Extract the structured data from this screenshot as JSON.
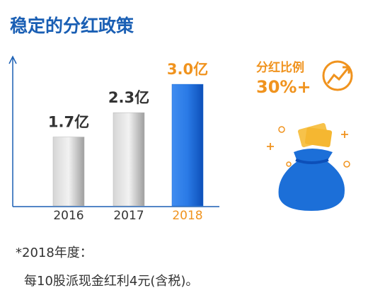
{
  "chart_data": {
    "type": "bar",
    "title": "稳定的分红政策",
    "categories": [
      "2016",
      "2017",
      "2018"
    ],
    "values": [
      1.7,
      2.3,
      3.0
    ],
    "value_labels": [
      "1.7亿",
      "2.3亿",
      "3.0亿"
    ],
    "colors": [
      "#b5b5b5",
      "#b5b5b5",
      "#1c6fd8"
    ],
    "label_colors": [
      "#333333",
      "#333333",
      "#f0931e"
    ],
    "annotation": {
      "label": "分红比例",
      "value": "30%+"
    },
    "footnote": [
      "*2018年度：",
      "每10股派现金红利4元(含税)。"
    ]
  }
}
